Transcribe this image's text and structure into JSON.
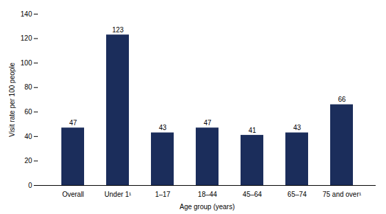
{
  "chart_data": {
    "type": "bar",
    "categories": [
      "Overall",
      "Under 1¹",
      "1–17",
      "18–44",
      "45–64",
      "65–74",
      "75 and over¹"
    ],
    "values": [
      47,
      123,
      43,
      47,
      41,
      43,
      66
    ],
    "color": "#1b2d5b",
    "xlabel": "Age group (years)",
    "ylabel": "Visit rate per 100 people",
    "ylim": [
      0,
      140
    ],
    "yticks": [
      0,
      20,
      40,
      60,
      80,
      100,
      120,
      140
    ],
    "grid": false,
    "data_labels": true
  }
}
